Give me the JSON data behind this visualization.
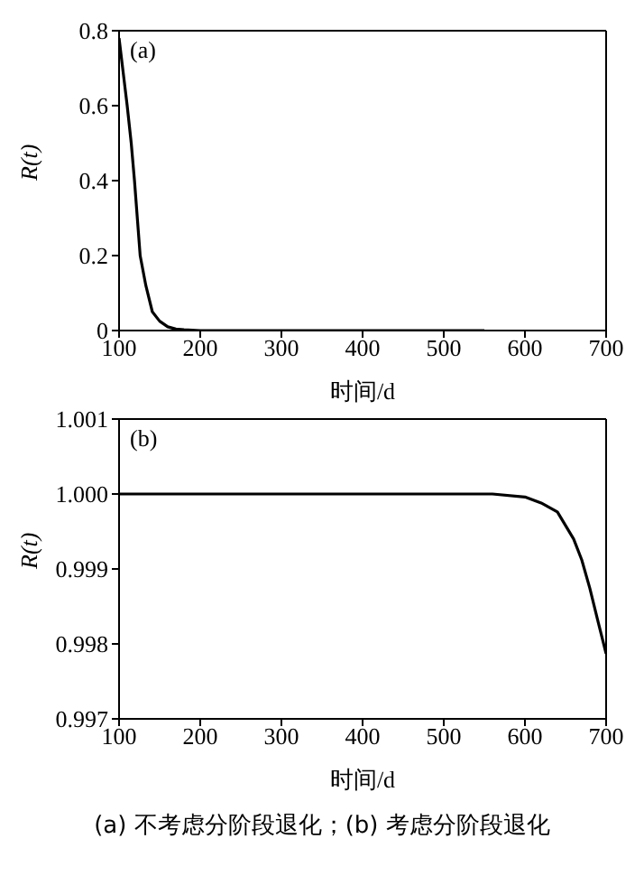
{
  "chart_data": [
    {
      "type": "line",
      "title": "(a)",
      "xlabel": "时间/d",
      "ylabel": "R(t)",
      "x": [
        100,
        105,
        110,
        115,
        119,
        126,
        133,
        141,
        150,
        160,
        170,
        180,
        200,
        300,
        400,
        500,
        550
      ],
      "series": [
        {
          "color": "#000000",
          "values": [
            0.78,
            0.69,
            0.6,
            0.5,
            0.4,
            0.2,
            0.12,
            0.05,
            0.025,
            0.01,
            0.004,
            0.002,
            0,
            0,
            0,
            0,
            0
          ]
        }
      ],
      "xlim": [
        100,
        700
      ],
      "xticks": [
        100,
        200,
        300,
        400,
        500,
        600,
        700
      ],
      "ylim": [
        0,
        0.8
      ],
      "yticks": [
        0,
        0.2,
        0.4,
        0.6,
        0.8
      ],
      "grid": false,
      "legend": false,
      "marker": "none",
      "line_style": "solid"
    },
    {
      "type": "line",
      "title": "(b)",
      "xlabel": "时间/d",
      "ylabel": "R(t)",
      "x": [
        100,
        200,
        300,
        400,
        500,
        560,
        600,
        620,
        640,
        660,
        670,
        680,
        690,
        700
      ],
      "series": [
        {
          "color": "#000000",
          "values": [
            1.0,
            1.0,
            1.0,
            1.0,
            1.0,
            1.0,
            0.99996,
            0.99988,
            0.99976,
            0.9994,
            0.99912,
            0.99874,
            0.9983,
            0.99787
          ]
        }
      ],
      "xlim": [
        100,
        700
      ],
      "xticks": [
        100,
        200,
        300,
        400,
        500,
        600,
        700
      ],
      "ylim": [
        0.997,
        1.001
      ],
      "yticks": [
        0.997,
        0.998,
        0.999,
        {
          "value": 1,
          "label": "1.000"
        },
        1.001
      ],
      "grid": false,
      "legend": false,
      "marker": "none",
      "line_style": "solid",
      "annotations": [
        "(a) 不考虑分阶段退化；(b) 考虑分阶段退化"
      ]
    }
  ]
}
